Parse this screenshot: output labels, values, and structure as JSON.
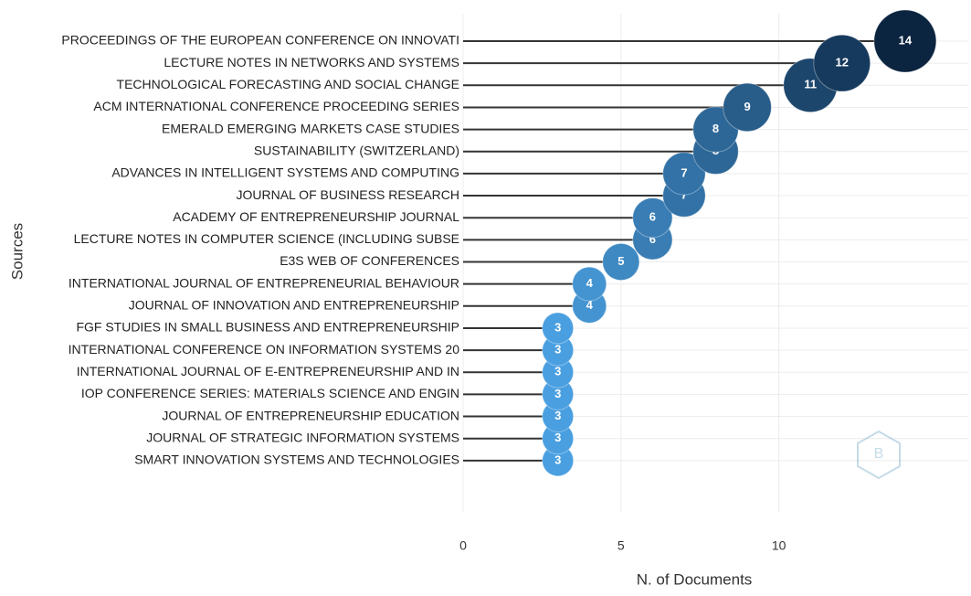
{
  "chart_data": {
    "type": "lollipop",
    "x_label": "N. of Documents",
    "y_label": "Sources",
    "categories": [
      "PROCEEDINGS OF THE EUROPEAN CONFERENCE ON INNOVATI",
      "LECTURE NOTES IN NETWORKS AND SYSTEMS",
      "TECHNOLOGICAL FORECASTING AND SOCIAL CHANGE",
      "ACM INTERNATIONAL CONFERENCE PROCEEDING SERIES",
      "EMERALD EMERGING MARKETS CASE STUDIES",
      "SUSTAINABILITY (SWITZERLAND)",
      "ADVANCES IN INTELLIGENT SYSTEMS AND COMPUTING",
      "JOURNAL OF BUSINESS RESEARCH",
      "ACADEMY OF ENTREPRENEURSHIP JOURNAL",
      "LECTURE NOTES IN COMPUTER SCIENCE (INCLUDING SUBSE",
      "E3S WEB OF CONFERENCES",
      "INTERNATIONAL JOURNAL OF ENTREPRENEURIAL BEHAVIOUR",
      "JOURNAL OF INNOVATION AND ENTREPRENEURSHIP",
      "FGF STUDIES IN SMALL BUSINESS AND ENTREPRENEURSHIP",
      "INTERNATIONAL CONFERENCE ON INFORMATION SYSTEMS 20",
      "INTERNATIONAL JOURNAL OF E-ENTREPRENEURSHIP AND IN",
      "IOP CONFERENCE SERIES: MATERIALS SCIENCE AND ENGIN",
      "JOURNAL OF ENTREPRENEURSHIP EDUCATION",
      "JOURNAL OF STRATEGIC INFORMATION SYSTEMS",
      "SMART INNOVATION SYSTEMS AND TECHNOLOGIES"
    ],
    "values": [
      14,
      12,
      11,
      9,
      8,
      8,
      7,
      7,
      6,
      6,
      5,
      4,
      4,
      3,
      3,
      3,
      3,
      3,
      3,
      3
    ],
    "color_low": "#4a9fe0",
    "color_high": "#0b2440",
    "stem_color": "#333333",
    "xlim": [
      0,
      16
    ],
    "xticks": [
      0,
      5,
      10
    ],
    "grid": true
  }
}
